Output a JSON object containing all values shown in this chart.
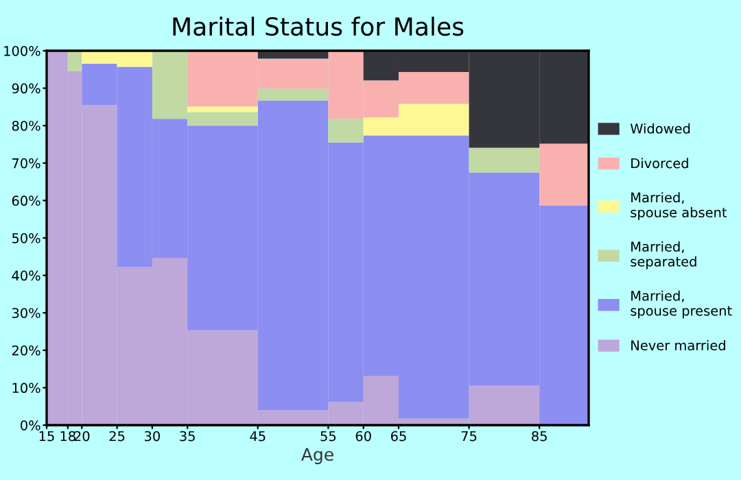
{
  "chart_data": {
    "type": "bar",
    "stacked": true,
    "title": "Marital Status for Males",
    "xlabel": "Age",
    "x": [
      16.5,
      19,
      22.5,
      27.5,
      32.5,
      40,
      50,
      57.5,
      62.5,
      70,
      80,
      88.5
    ],
    "xlim": [
      15,
      92
    ],
    "xticks": [
      15,
      18,
      20,
      25,
      30,
      35,
      45,
      55,
      60,
      65,
      75,
      85
    ],
    "ylim": [
      0,
      100
    ],
    "yticks": [
      {
        "value": 0,
        "label": "0%"
      },
      {
        "value": 10,
        "label": "10%"
      },
      {
        "value": 20,
        "label": "20%"
      },
      {
        "value": 30,
        "label": "30%"
      },
      {
        "value": 40,
        "label": "40%"
      },
      {
        "value": 50,
        "label": "50%"
      },
      {
        "value": 60,
        "label": "60%"
      },
      {
        "value": 70,
        "label": "70%"
      },
      {
        "value": 80,
        "label": "80%"
      },
      {
        "value": 90,
        "label": "90%"
      },
      {
        "value": 100,
        "label": "100%"
      }
    ],
    "series": [
      {
        "name": "Never married",
        "color": "#bea7d9",
        "values": [
          100,
          94.6,
          85.5,
          42.2,
          44.7,
          25.3,
          4.0,
          6.2,
          13.2,
          1.8,
          10.6,
          0
        ]
      },
      {
        "name": "Married,\nspouse present",
        "color": "#8d8ef1",
        "values": [
          0,
          0,
          11.0,
          53.5,
          37.1,
          54.7,
          82.7,
          69.3,
          64.2,
          75.6,
          56.9,
          58.7
        ]
      },
      {
        "name": "Married,\nseparated",
        "color": "#c2d9a4",
        "values": [
          0,
          5.4,
          0,
          0,
          18.2,
          3.6,
          3.2,
          6.3,
          0,
          0,
          6.6,
          0
        ]
      },
      {
        "name": "Married,\nspouse absent",
        "color": "#fef894",
        "values": [
          0,
          0,
          3.5,
          4.3,
          0,
          1.5,
          0,
          0,
          4.8,
          8.4,
          0,
          0
        ]
      },
      {
        "name": "Divorced",
        "color": "#f9b1b0",
        "values": [
          0,
          0,
          0,
          0,
          0,
          14.9,
          8.0,
          18.2,
          9.9,
          8.5,
          0,
          16.5
        ]
      },
      {
        "name": "Widowed",
        "color": "#35363c",
        "values": [
          0,
          0,
          0,
          0,
          0,
          0,
          2.1,
          0,
          7.9,
          5.7,
          25.9,
          24.8
        ]
      }
    ],
    "legend": "right",
    "grid": false
  }
}
